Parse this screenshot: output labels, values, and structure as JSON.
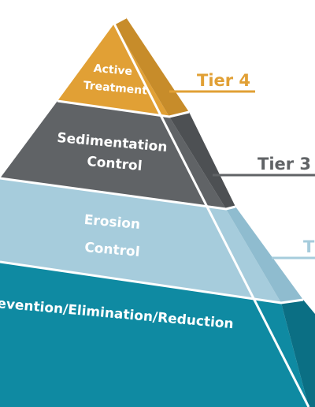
{
  "colors": {
    "tier4": "#e1a035",
    "tier3": "#606366",
    "tier2": "#a6ccdc",
    "tier1": "#0f8aa2",
    "background": "#ffffff"
  },
  "layers": [
    {
      "tier": "Tier 4",
      "line1": "Active",
      "line2": "Treatment"
    },
    {
      "tier": "Tier 3",
      "line1": "Sedimentation",
      "line2": "Control"
    },
    {
      "tier": "Ti",
      "line1": "Erosion",
      "line2": "Control"
    },
    {
      "tier": "",
      "line1": "evention/Elimination/Reduction",
      "line2": ""
    }
  ]
}
